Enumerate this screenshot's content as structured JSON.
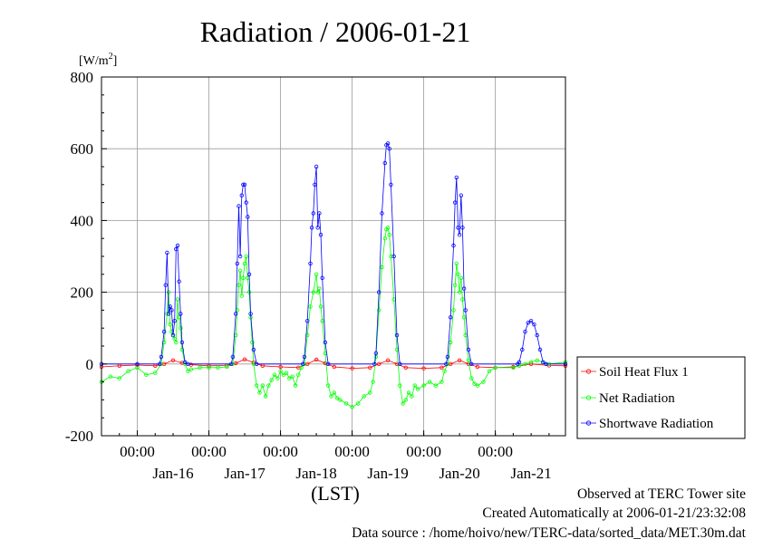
{
  "chart_data": {
    "type": "line",
    "title": "Radiation / 2006-01-21",
    "unit": "[W/m2]",
    "unit_base": "[W/m",
    "unit_sup": "2",
    "unit_close": "]",
    "xlabel": "(LST)",
    "ylim": [
      -200,
      800
    ],
    "yticks": [
      -200,
      0,
      200,
      400,
      600,
      800
    ],
    "ytick_labels": [
      "-200",
      "0",
      "200",
      "400",
      "600",
      "800"
    ],
    "xlim": [
      "2006-01-15T12:00",
      "2006-01-21T23:30"
    ],
    "xticks": [
      "2006-01-16T00:00",
      "2006-01-17T00:00",
      "2006-01-18T00:00",
      "2006-01-19T00:00",
      "2006-01-20T00:00",
      "2006-01-21T00:00"
    ],
    "xtick_labels": [
      "00:00",
      "00:00",
      "00:00",
      "00:00",
      "00:00",
      "00:00"
    ],
    "date_labels": [
      {
        "label": "Jan-16",
        "at": "2006-01-16T12:00"
      },
      {
        "label": "Jan-17",
        "at": "2006-01-17T12:00"
      },
      {
        "label": "Jan-18",
        "at": "2006-01-18T12:00"
      },
      {
        "label": "Jan-19",
        "at": "2006-01-19T12:00"
      },
      {
        "label": "Jan-20",
        "at": "2006-01-20T12:00"
      },
      {
        "label": "Jan-21",
        "at": "2006-01-21T12:00"
      }
    ],
    "grid": true,
    "legend_position": "right-bottom, outside plot",
    "series": [
      {
        "name": "Soil Heat Flux 1",
        "color": "#ff0000",
        "points": [
          [
            "2006-01-15T12:00",
            -8
          ],
          [
            "2006-01-15T18:00",
            -5
          ],
          [
            "2006-01-16T00:00",
            -3
          ],
          [
            "2006-01-16T06:00",
            -5
          ],
          [
            "2006-01-16T09:00",
            0
          ],
          [
            "2006-01-16T12:00",
            10
          ],
          [
            "2006-01-16T15:00",
            3
          ],
          [
            "2006-01-16T18:00",
            -2
          ],
          [
            "2006-01-17T00:00",
            -5
          ],
          [
            "2006-01-17T06:00",
            -4
          ],
          [
            "2006-01-17T09:00",
            2
          ],
          [
            "2006-01-17T12:00",
            13
          ],
          [
            "2006-01-17T15:00",
            4
          ],
          [
            "2006-01-17T18:00",
            -5
          ],
          [
            "2006-01-18T00:00",
            -8
          ],
          [
            "2006-01-18T06:00",
            -10
          ],
          [
            "2006-01-18T09:00",
            0
          ],
          [
            "2006-01-18T12:00",
            12
          ],
          [
            "2006-01-18T15:00",
            2
          ],
          [
            "2006-01-18T18:00",
            -8
          ],
          [
            "2006-01-19T00:00",
            -12
          ],
          [
            "2006-01-19T06:00",
            -10
          ],
          [
            "2006-01-19T09:00",
            0
          ],
          [
            "2006-01-19T12:00",
            10
          ],
          [
            "2006-01-19T15:00",
            0
          ],
          [
            "2006-01-19T18:00",
            -10
          ],
          [
            "2006-01-20T00:00",
            -12
          ],
          [
            "2006-01-20T06:00",
            -10
          ],
          [
            "2006-01-20T09:00",
            0
          ],
          [
            "2006-01-20T12:00",
            10
          ],
          [
            "2006-01-20T15:00",
            0
          ],
          [
            "2006-01-20T18:00",
            -8
          ],
          [
            "2006-01-21T00:00",
            -10
          ],
          [
            "2006-01-21T06:00",
            -8
          ],
          [
            "2006-01-21T12:00",
            0
          ],
          [
            "2006-01-21T18:00",
            -4
          ],
          [
            "2006-01-21T23:30",
            -5
          ]
        ]
      },
      {
        "name": "Net Radiation",
        "color": "#00ff00",
        "points": [
          [
            "2006-01-15T12:00",
            -50
          ],
          [
            "2006-01-15T15:00",
            -35
          ],
          [
            "2006-01-15T18:00",
            -40
          ],
          [
            "2006-01-15T21:00",
            -20
          ],
          [
            "2006-01-16T00:00",
            -10
          ],
          [
            "2006-01-16T03:00",
            -30
          ],
          [
            "2006-01-16T06:00",
            -25
          ],
          [
            "2006-01-16T08:00",
            0
          ],
          [
            "2006-01-16T09:00",
            60
          ],
          [
            "2006-01-16T10:00",
            140
          ],
          [
            "2006-01-16T10:30",
            200
          ],
          [
            "2006-01-16T11:00",
            110
          ],
          [
            "2006-01-16T11:30",
            90
          ],
          [
            "2006-01-16T12:00",
            80
          ],
          [
            "2006-01-16T12:30",
            70
          ],
          [
            "2006-01-16T13:00",
            60
          ],
          [
            "2006-01-16T13:30",
            180
          ],
          [
            "2006-01-16T14:00",
            130
          ],
          [
            "2006-01-16T14:30",
            100
          ],
          [
            "2006-01-16T15:00",
            40
          ],
          [
            "2006-01-16T16:00",
            0
          ],
          [
            "2006-01-16T17:00",
            -20
          ],
          [
            "2006-01-16T18:00",
            -15
          ],
          [
            "2006-01-16T21:00",
            -10
          ],
          [
            "2006-01-17T00:00",
            -10
          ],
          [
            "2006-01-17T03:00",
            -10
          ],
          [
            "2006-01-17T06:00",
            -8
          ],
          [
            "2006-01-17T08:00",
            0
          ],
          [
            "2006-01-17T09:00",
            80
          ],
          [
            "2006-01-17T09:30",
            150
          ],
          [
            "2006-01-17T10:00",
            220
          ],
          [
            "2006-01-17T10:30",
            260
          ],
          [
            "2006-01-17T11:00",
            190
          ],
          [
            "2006-01-17T11:30",
            240
          ],
          [
            "2006-01-17T12:00",
            280
          ],
          [
            "2006-01-17T12:30",
            300
          ],
          [
            "2006-01-17T13:00",
            240
          ],
          [
            "2006-01-17T13:30",
            200
          ],
          [
            "2006-01-17T14:00",
            130
          ],
          [
            "2006-01-17T14:30",
            60
          ],
          [
            "2006-01-17T15:00",
            0
          ],
          [
            "2006-01-17T16:00",
            -60
          ],
          [
            "2006-01-17T17:00",
            -80
          ],
          [
            "2006-01-17T18:00",
            -60
          ],
          [
            "2006-01-17T19:00",
            -90
          ],
          [
            "2006-01-17T20:00",
            -60
          ],
          [
            "2006-01-17T21:00",
            -45
          ],
          [
            "2006-01-17T22:00",
            -30
          ],
          [
            "2006-01-17T23:00",
            -40
          ],
          [
            "2006-01-18T00:00",
            -20
          ],
          [
            "2006-01-18T01:00",
            -30
          ],
          [
            "2006-01-18T02:00",
            -25
          ],
          [
            "2006-01-18T03:00",
            -40
          ],
          [
            "2006-01-18T04:00",
            -35
          ],
          [
            "2006-01-18T05:00",
            -60
          ],
          [
            "2006-01-18T06:00",
            -30
          ],
          [
            "2006-01-18T07:00",
            -10
          ],
          [
            "2006-01-18T08:00",
            0
          ],
          [
            "2006-01-18T09:00",
            80
          ],
          [
            "2006-01-18T10:00",
            160
          ],
          [
            "2006-01-18T11:00",
            200
          ],
          [
            "2006-01-18T12:00",
            250
          ],
          [
            "2006-01-18T12:30",
            200
          ],
          [
            "2006-01-18T13:00",
            210
          ],
          [
            "2006-01-18T13:30",
            160
          ],
          [
            "2006-01-18T14:00",
            120
          ],
          [
            "2006-01-18T15:00",
            30
          ],
          [
            "2006-01-18T16:00",
            -60
          ],
          [
            "2006-01-18T17:00",
            -90
          ],
          [
            "2006-01-18T18:00",
            -80
          ],
          [
            "2006-01-18T19:00",
            -95
          ],
          [
            "2006-01-18T20:00",
            -100
          ],
          [
            "2006-01-18T22:00",
            -110
          ],
          [
            "2006-01-19T00:00",
            -120
          ],
          [
            "2006-01-19T02:00",
            -110
          ],
          [
            "2006-01-19T04:00",
            -90
          ],
          [
            "2006-01-19T06:00",
            -80
          ],
          [
            "2006-01-19T07:00",
            -50
          ],
          [
            "2006-01-19T08:00",
            20
          ],
          [
            "2006-01-19T09:00",
            150
          ],
          [
            "2006-01-19T10:00",
            270
          ],
          [
            "2006-01-19T11:00",
            350
          ],
          [
            "2006-01-19T11:30",
            375
          ],
          [
            "2006-01-19T12:00",
            380
          ],
          [
            "2006-01-19T12:30",
            360
          ],
          [
            "2006-01-19T13:00",
            300
          ],
          [
            "2006-01-19T14:00",
            180
          ],
          [
            "2006-01-19T15:00",
            40
          ],
          [
            "2006-01-19T16:00",
            -60
          ],
          [
            "2006-01-19T17:00",
            -110
          ],
          [
            "2006-01-19T18:00",
            -100
          ],
          [
            "2006-01-19T19:00",
            -80
          ],
          [
            "2006-01-19T20:00",
            -90
          ],
          [
            "2006-01-19T21:00",
            -60
          ],
          [
            "2006-01-19T22:00",
            -70
          ],
          [
            "2006-01-20T00:00",
            -60
          ],
          [
            "2006-01-20T02:00",
            -50
          ],
          [
            "2006-01-20T04:00",
            -60
          ],
          [
            "2006-01-20T06:00",
            -50
          ],
          [
            "2006-01-20T07:00",
            -20
          ],
          [
            "2006-01-20T08:00",
            0
          ],
          [
            "2006-01-20T09:00",
            60
          ],
          [
            "2006-01-20T10:00",
            150
          ],
          [
            "2006-01-20T10:30",
            220
          ],
          [
            "2006-01-20T11:00",
            280
          ],
          [
            "2006-01-20T11:30",
            250
          ],
          [
            "2006-01-20T12:00",
            200
          ],
          [
            "2006-01-20T12:30",
            240
          ],
          [
            "2006-01-20T13:00",
            180
          ],
          [
            "2006-01-20T13:30",
            130
          ],
          [
            "2006-01-20T14:00",
            80
          ],
          [
            "2006-01-20T15:00",
            10
          ],
          [
            "2006-01-20T16:00",
            -40
          ],
          [
            "2006-01-20T17:00",
            -55
          ],
          [
            "2006-01-20T18:00",
            -60
          ],
          [
            "2006-01-20T20:00",
            -50
          ],
          [
            "2006-01-20T22:00",
            -20
          ],
          [
            "2006-01-21T00:00",
            -10
          ],
          [
            "2006-01-21T06:00",
            -10
          ],
          [
            "2006-01-21T08:00",
            -5
          ],
          [
            "2006-01-21T10:00",
            0
          ],
          [
            "2006-01-21T12:00",
            5
          ],
          [
            "2006-01-21T14:00",
            10
          ],
          [
            "2006-01-21T16:00",
            5
          ],
          [
            "2006-01-21T18:00",
            0
          ],
          [
            "2006-01-21T23:30",
            5
          ]
        ]
      },
      {
        "name": "Shortwave Radiation",
        "color": "#0000ff",
        "points": [
          [
            "2006-01-15T12:00",
            0
          ],
          [
            "2006-01-16T00:00",
            0
          ],
          [
            "2006-01-16T07:30",
            0
          ],
          [
            "2006-01-16T08:00",
            20
          ],
          [
            "2006-01-16T09:00",
            90
          ],
          [
            "2006-01-16T09:30",
            220
          ],
          [
            "2006-01-16T10:00",
            310
          ],
          [
            "2006-01-16T10:30",
            140
          ],
          [
            "2006-01-16T11:00",
            160
          ],
          [
            "2006-01-16T11:30",
            150
          ],
          [
            "2006-01-16T12:00",
            80
          ],
          [
            "2006-01-16T12:30",
            120
          ],
          [
            "2006-01-16T13:00",
            320
          ],
          [
            "2006-01-16T13:30",
            330
          ],
          [
            "2006-01-16T14:00",
            230
          ],
          [
            "2006-01-16T14:30",
            140
          ],
          [
            "2006-01-16T15:00",
            60
          ],
          [
            "2006-01-16T16:00",
            5
          ],
          [
            "2006-01-16T17:00",
            0
          ],
          [
            "2006-01-17T07:30",
            0
          ],
          [
            "2006-01-17T08:00",
            20
          ],
          [
            "2006-01-17T09:00",
            140
          ],
          [
            "2006-01-17T09:30",
            280
          ],
          [
            "2006-01-17T10:00",
            440
          ],
          [
            "2006-01-17T10:30",
            300
          ],
          [
            "2006-01-17T11:00",
            470
          ],
          [
            "2006-01-17T11:30",
            500
          ],
          [
            "2006-01-17T12:00",
            500
          ],
          [
            "2006-01-17T12:30",
            450
          ],
          [
            "2006-01-17T13:00",
            410
          ],
          [
            "2006-01-17T13:30",
            250
          ],
          [
            "2006-01-17T14:00",
            140
          ],
          [
            "2006-01-17T15:00",
            40
          ],
          [
            "2006-01-17T16:00",
            0
          ],
          [
            "2006-01-18T07:30",
            0
          ],
          [
            "2006-01-18T08:00",
            20
          ],
          [
            "2006-01-18T09:00",
            120
          ],
          [
            "2006-01-18T10:00",
            280
          ],
          [
            "2006-01-18T10:30",
            380
          ],
          [
            "2006-01-18T11:00",
            420
          ],
          [
            "2006-01-18T11:30",
            500
          ],
          [
            "2006-01-18T12:00",
            550
          ],
          [
            "2006-01-18T12:30",
            380
          ],
          [
            "2006-01-18T13:00",
            420
          ],
          [
            "2006-01-18T13:30",
            360
          ],
          [
            "2006-01-18T14:00",
            240
          ],
          [
            "2006-01-18T15:00",
            60
          ],
          [
            "2006-01-18T16:00",
            0
          ],
          [
            "2006-01-19T07:30",
            0
          ],
          [
            "2006-01-19T08:00",
            30
          ],
          [
            "2006-01-19T09:00",
            200
          ],
          [
            "2006-01-19T10:00",
            420
          ],
          [
            "2006-01-19T11:00",
            560
          ],
          [
            "2006-01-19T11:30",
            610
          ],
          [
            "2006-01-19T12:00",
            615
          ],
          [
            "2006-01-19T12:30",
            600
          ],
          [
            "2006-01-19T13:00",
            500
          ],
          [
            "2006-01-19T14:00",
            300
          ],
          [
            "2006-01-19T15:00",
            80
          ],
          [
            "2006-01-19T16:00",
            0
          ],
          [
            "2006-01-20T07:30",
            0
          ],
          [
            "2006-01-20T08:00",
            20
          ],
          [
            "2006-01-20T09:00",
            130
          ],
          [
            "2006-01-20T10:00",
            330
          ],
          [
            "2006-01-20T10:30",
            450
          ],
          [
            "2006-01-20T11:00",
            520
          ],
          [
            "2006-01-20T11:30",
            380
          ],
          [
            "2006-01-20T12:00",
            360
          ],
          [
            "2006-01-20T12:30",
            470
          ],
          [
            "2006-01-20T13:00",
            380
          ],
          [
            "2006-01-20T13:30",
            210
          ],
          [
            "2006-01-20T14:00",
            150
          ],
          [
            "2006-01-20T15:00",
            40
          ],
          [
            "2006-01-20T16:00",
            0
          ],
          [
            "2006-01-21T07:30",
            0
          ],
          [
            "2006-01-21T08:00",
            5
          ],
          [
            "2006-01-21T09:00",
            40
          ],
          [
            "2006-01-21T10:00",
            90
          ],
          [
            "2006-01-21T11:00",
            115
          ],
          [
            "2006-01-21T12:00",
            120
          ],
          [
            "2006-01-21T13:00",
            110
          ],
          [
            "2006-01-21T14:00",
            80
          ],
          [
            "2006-01-21T15:00",
            40
          ],
          [
            "2006-01-21T16:00",
            5
          ],
          [
            "2006-01-21T17:00",
            0
          ],
          [
            "2006-01-21T23:30",
            0
          ]
        ]
      }
    ]
  },
  "footer": {
    "site": "Observed at TERC Tower site",
    "created": "Created Automatically at 2006-01-21/23:32:08",
    "source": "Data source : /home/hoivo/new/TERC-data/sorted_data/MET.30m.dat"
  }
}
